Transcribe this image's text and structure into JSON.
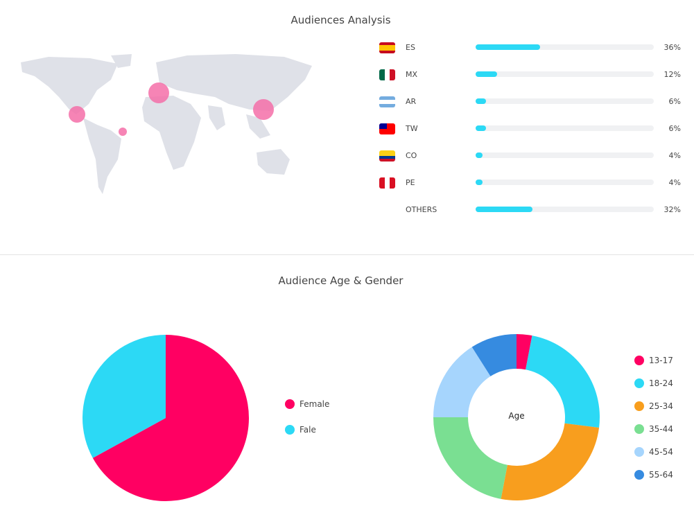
{
  "sections": {
    "audiences_title": "Audiences Analysis",
    "age_gender_title": "Audience Age & Gender"
  },
  "countries": [
    {
      "code": "ES",
      "pct": 36,
      "label": "36%",
      "flag": "spain-flag"
    },
    {
      "code": "MX",
      "pct": 12,
      "label": "12%",
      "flag": "mexico-flag"
    },
    {
      "code": "AR",
      "pct": 6,
      "label": "6%",
      "flag": "argentina-flag"
    },
    {
      "code": "TW",
      "pct": 6,
      "label": "6%",
      "flag": "taiwan-flag"
    },
    {
      "code": "CO",
      "pct": 4,
      "label": "4%",
      "flag": "colombia-flag"
    },
    {
      "code": "PE",
      "pct": 4,
      "label": "4%",
      "flag": "peru-flag"
    },
    {
      "code": "OTHERS",
      "pct": 32,
      "label": "32%",
      "flag": ""
    }
  ],
  "colors": {
    "bar": "#2cd9f5",
    "bubble": "#f56fa8",
    "map": "#dfe1e8"
  },
  "chart_data": [
    {
      "type": "pie",
      "categories": [
        "Female",
        "Fale"
      ],
      "values": [
        67,
        33
      ],
      "colors": [
        "#ff0062",
        "#2cd9f5"
      ],
      "legend": "right"
    },
    {
      "type": "pie",
      "donut": true,
      "center_label": "Age",
      "categories": [
        "13-17",
        "18-24",
        "25-34",
        "35-44",
        "45-54",
        "55-64"
      ],
      "values": [
        3,
        24,
        26,
        22,
        16,
        9
      ],
      "colors": [
        "#ff0062",
        "#2cd9f5",
        "#f89e1e",
        "#7adf92",
        "#a6d5fd",
        "#368be0"
      ],
      "legend": "right"
    }
  ]
}
